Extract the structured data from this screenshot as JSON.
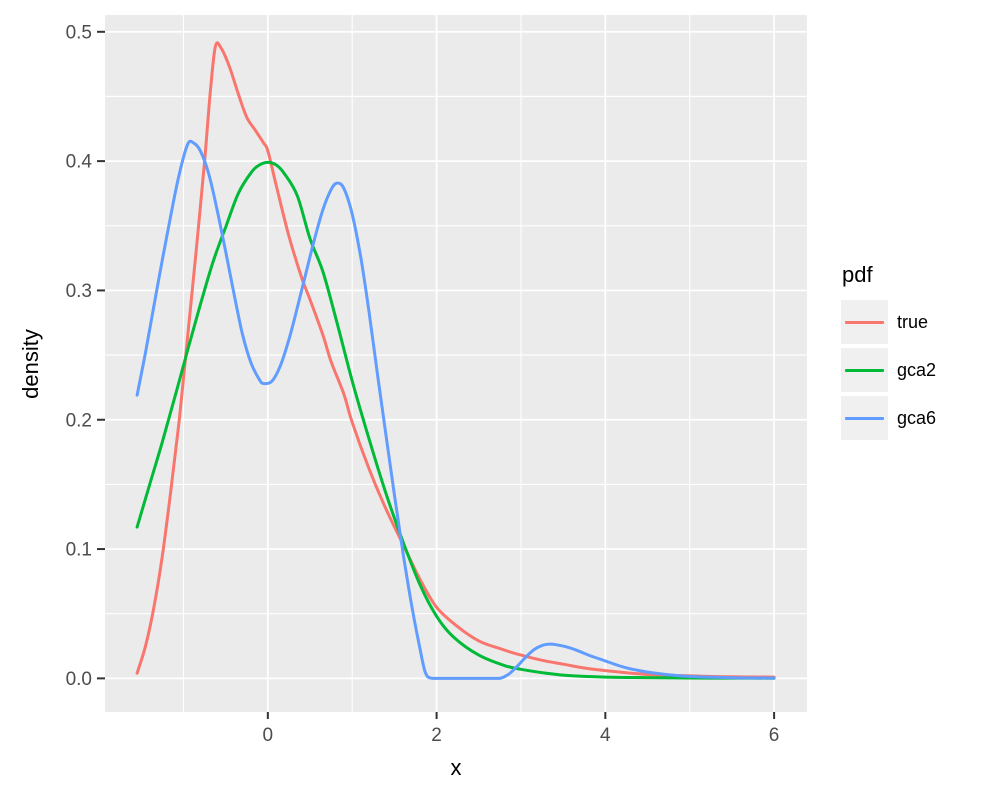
{
  "chart_data": {
    "type": "line",
    "title": "",
    "xlabel": "x",
    "ylabel": "density",
    "xlim": [
      -1.93,
      6.39
    ],
    "ylim": [
      -0.026,
      0.513
    ],
    "x_ticks": [
      0,
      2,
      4,
      6
    ],
    "x_tick_labels": [
      "0",
      "2",
      "4",
      "6"
    ],
    "x_minor_gridlines": [
      -1,
      1,
      3,
      5
    ],
    "y_ticks": [
      0.0,
      0.1,
      0.2,
      0.3,
      0.4,
      0.5
    ],
    "y_tick_labels": [
      "0.0",
      "0.1",
      "0.2",
      "0.3",
      "0.4",
      "0.5"
    ],
    "y_minor_gridlines": [
      0.05,
      0.15,
      0.25,
      0.35,
      0.45
    ],
    "grid": true,
    "legend_position": "right",
    "panel_bg": "#EBEBEB",
    "gridline_color": "#FFFFFF",
    "tick_mark_color": "#333333",
    "tick_label_color": "#4D4D4D",
    "legend_key_bg": "#F0F0F0",
    "series": [
      {
        "name": "true",
        "color": "#F8766D",
        "points": [
          [
            -1.55,
            0.004
          ],
          [
            -1.45,
            0.025
          ],
          [
            -1.35,
            0.055
          ],
          [
            -1.25,
            0.095
          ],
          [
            -1.15,
            0.145
          ],
          [
            -1.05,
            0.2
          ],
          [
            -0.95,
            0.265
          ],
          [
            -0.85,
            0.33
          ],
          [
            -0.75,
            0.4
          ],
          [
            -0.68,
            0.455
          ],
          [
            -0.62,
            0.489
          ],
          [
            -0.55,
            0.487
          ],
          [
            -0.45,
            0.472
          ],
          [
            -0.35,
            0.452
          ],
          [
            -0.25,
            0.434
          ],
          [
            -0.15,
            0.424
          ],
          [
            -0.05,
            0.414
          ],
          [
            0.0,
            0.408
          ],
          [
            0.1,
            0.381
          ],
          [
            0.25,
            0.342
          ],
          [
            0.4,
            0.31
          ],
          [
            0.5,
            0.293
          ],
          [
            0.65,
            0.266
          ],
          [
            0.75,
            0.245
          ],
          [
            0.9,
            0.22
          ],
          [
            1.0,
            0.198
          ],
          [
            1.2,
            0.162
          ],
          [
            1.4,
            0.131
          ],
          [
            1.6,
            0.104
          ],
          [
            1.8,
            0.077
          ],
          [
            2.0,
            0.055
          ],
          [
            2.25,
            0.04
          ],
          [
            2.5,
            0.029
          ],
          [
            2.75,
            0.023
          ],
          [
            3.0,
            0.018
          ],
          [
            3.25,
            0.014
          ],
          [
            3.5,
            0.011
          ],
          [
            3.75,
            0.008
          ],
          [
            4.0,
            0.006
          ],
          [
            4.5,
            0.003
          ],
          [
            5.0,
            0.002
          ],
          [
            5.5,
            0.0012
          ],
          [
            6.0,
            0.001
          ]
        ]
      },
      {
        "name": "gca2",
        "color": "#00BA38",
        "points": [
          [
            -1.55,
            0.117
          ],
          [
            -1.4,
            0.15
          ],
          [
            -1.25,
            0.183
          ],
          [
            -1.1,
            0.218
          ],
          [
            -0.95,
            0.254
          ],
          [
            -0.8,
            0.289
          ],
          [
            -0.65,
            0.322
          ],
          [
            -0.5,
            0.349
          ],
          [
            -0.35,
            0.375
          ],
          [
            -0.2,
            0.391
          ],
          [
            -0.1,
            0.397
          ],
          [
            0.0,
            0.399
          ],
          [
            0.1,
            0.397
          ],
          [
            0.2,
            0.39
          ],
          [
            0.35,
            0.373
          ],
          [
            0.5,
            0.34
          ],
          [
            0.65,
            0.315
          ],
          [
            0.8,
            0.28
          ],
          [
            1.0,
            0.23
          ],
          [
            1.2,
            0.185
          ],
          [
            1.4,
            0.143
          ],
          [
            1.6,
            0.106
          ],
          [
            1.8,
            0.073
          ],
          [
            2.0,
            0.048
          ],
          [
            2.2,
            0.032
          ],
          [
            2.5,
            0.018
          ],
          [
            2.8,
            0.01
          ],
          [
            3.0,
            0.007
          ],
          [
            3.3,
            0.004
          ],
          [
            3.6,
            0.002
          ],
          [
            4.0,
            0.001
          ],
          [
            4.5,
            0.0006
          ],
          [
            5.0,
            0.0003
          ],
          [
            5.5,
            0.0002
          ],
          [
            6.0,
            0.0001
          ]
        ]
      },
      {
        "name": "gca6",
        "color": "#619CFF",
        "points": [
          [
            -1.55,
            0.219
          ],
          [
            -1.45,
            0.252
          ],
          [
            -1.35,
            0.288
          ],
          [
            -1.25,
            0.324
          ],
          [
            -1.15,
            0.358
          ],
          [
            -1.05,
            0.39
          ],
          [
            -0.95,
            0.413
          ],
          [
            -0.88,
            0.414
          ],
          [
            -0.8,
            0.408
          ],
          [
            -0.7,
            0.39
          ],
          [
            -0.6,
            0.362
          ],
          [
            -0.5,
            0.33
          ],
          [
            -0.4,
            0.297
          ],
          [
            -0.3,
            0.266
          ],
          [
            -0.2,
            0.244
          ],
          [
            -0.1,
            0.231
          ],
          [
            -0.05,
            0.228
          ],
          [
            0.05,
            0.23
          ],
          [
            0.15,
            0.242
          ],
          [
            0.25,
            0.262
          ],
          [
            0.35,
            0.287
          ],
          [
            0.45,
            0.313
          ],
          [
            0.55,
            0.339
          ],
          [
            0.65,
            0.362
          ],
          [
            0.75,
            0.378
          ],
          [
            0.82,
            0.383
          ],
          [
            0.9,
            0.379
          ],
          [
            1.0,
            0.359
          ],
          [
            1.1,
            0.326
          ],
          [
            1.2,
            0.283
          ],
          [
            1.3,
            0.235
          ],
          [
            1.4,
            0.188
          ],
          [
            1.5,
            0.142
          ],
          [
            1.6,
            0.098
          ],
          [
            1.7,
            0.058
          ],
          [
            1.8,
            0.024
          ],
          [
            1.87,
            0.004
          ],
          [
            1.95,
            0.0
          ],
          [
            2.1,
            0.0
          ],
          [
            2.3,
            0.0
          ],
          [
            2.5,
            0.0
          ],
          [
            2.65,
            0.0
          ],
          [
            2.75,
            0.0
          ],
          [
            2.85,
            0.003
          ],
          [
            2.95,
            0.009
          ],
          [
            3.05,
            0.016
          ],
          [
            3.15,
            0.022
          ],
          [
            3.25,
            0.0255
          ],
          [
            3.35,
            0.0265
          ],
          [
            3.5,
            0.025
          ],
          [
            3.65,
            0.022
          ],
          [
            3.8,
            0.018
          ],
          [
            4.0,
            0.0135
          ],
          [
            4.2,
            0.009
          ],
          [
            4.4,
            0.006
          ],
          [
            4.6,
            0.004
          ],
          [
            4.8,
            0.0025
          ],
          [
            5.0,
            0.0015
          ],
          [
            5.3,
            0.0008
          ],
          [
            5.6,
            0.0004
          ],
          [
            6.0,
            0.0002
          ]
        ]
      }
    ]
  },
  "legend": {
    "title": "pdf",
    "items": [
      {
        "label": "true"
      },
      {
        "label": "gca2"
      },
      {
        "label": "gca6"
      }
    ]
  }
}
